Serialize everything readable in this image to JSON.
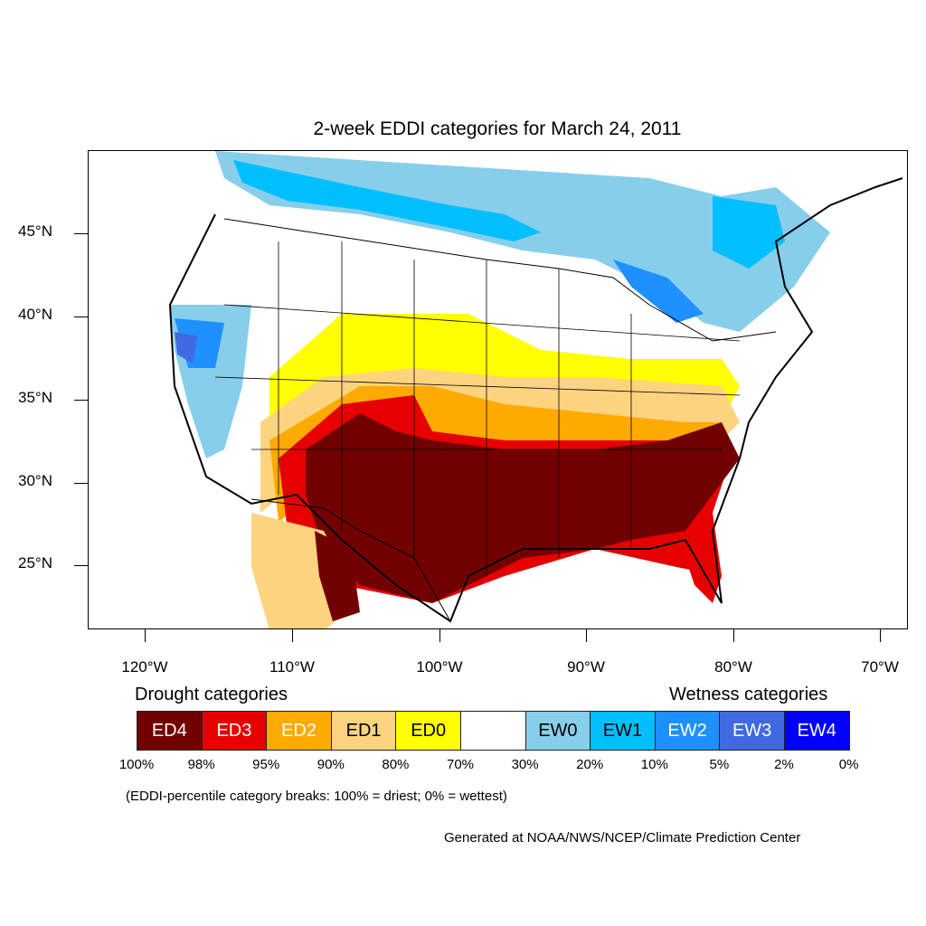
{
  "title": "2-week EDDI categories for March 24, 2011",
  "latitude_labels": [
    "45°N",
    "40°N",
    "35°N",
    "30°N",
    "25°N"
  ],
  "longitude_labels": [
    "120°W",
    "110°W",
    "100°W",
    "90°W",
    "80°W",
    "70°W"
  ],
  "legend": {
    "drought_heading": "Drought categories",
    "wetness_heading": "Wetness categories",
    "categories": [
      {
        "label": "ED4",
        "color": "#730000",
        "text_color": "#ffffff"
      },
      {
        "label": "ED3",
        "color": "#e60000",
        "text_color": "#ffffff"
      },
      {
        "label": "ED2",
        "color": "#ffaa00",
        "text_color": "#ffffff"
      },
      {
        "label": "ED1",
        "color": "#fcd37f",
        "text_color": "#000000"
      },
      {
        "label": "ED0",
        "color": "#ffff00",
        "text_color": "#000000"
      },
      {
        "label": "",
        "color": "#ffffff",
        "text_color": "#000000"
      },
      {
        "label": "EW0",
        "color": "#87ceeb",
        "text_color": "#000000"
      },
      {
        "label": "EW1",
        "color": "#00bfff",
        "text_color": "#000000"
      },
      {
        "label": "EW2",
        "color": "#1e90ff",
        "text_color": "#ffffff"
      },
      {
        "label": "EW3",
        "color": "#4169e1",
        "text_color": "#ffffff"
      },
      {
        "label": "EW4",
        "color": "#0000ff",
        "text_color": "#ffffff"
      }
    ],
    "percentiles": [
      "100%",
      "98%",
      "95%",
      "90%",
      "80%",
      "70%",
      "30%",
      "20%",
      "10%",
      "5%",
      "2%",
      "0%"
    ]
  },
  "note": "(EDDI-percentile category breaks: 100% = driest; 0% = wettest)",
  "credit": "Generated at NOAA/NWS/NCEP/Climate Prediction Center"
}
